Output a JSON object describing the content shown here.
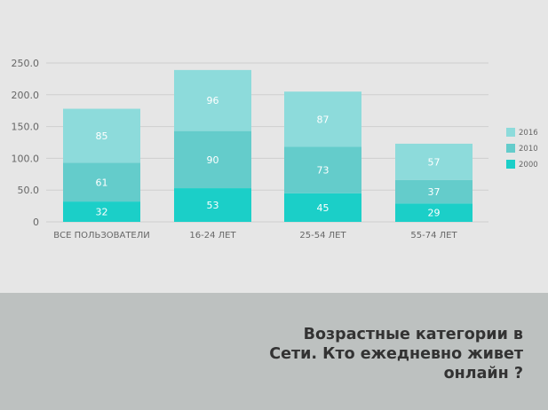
{
  "chart_data": {
    "type": "bar",
    "stacked": true,
    "categories": [
      "ВСЕ ПОЛЬЗОВАТЕЛИ",
      "16-24 ЛЕТ",
      "25-54 ЛЕТ",
      "55-74 ЛЕТ"
    ],
    "series": [
      {
        "name": "2000",
        "values": [
          32,
          53,
          45,
          29
        ],
        "color": "#1bcfc8"
      },
      {
        "name": "2010",
        "values": [
          61,
          90,
          73,
          37
        ],
        "color": "#64cccb"
      },
      {
        "name": "2016",
        "values": [
          85,
          96,
          87,
          57
        ],
        "color": "#8ddbdb"
      }
    ],
    "yticks": [
      "0",
      "50.0",
      "100.0",
      "150.0",
      "200.0",
      "250.0"
    ],
    "ylim": [
      0,
      250
    ],
    "grid": true,
    "legend": "right"
  },
  "title": "Возрастные категории в Сети. Кто ежедневно живет онлайн ?"
}
